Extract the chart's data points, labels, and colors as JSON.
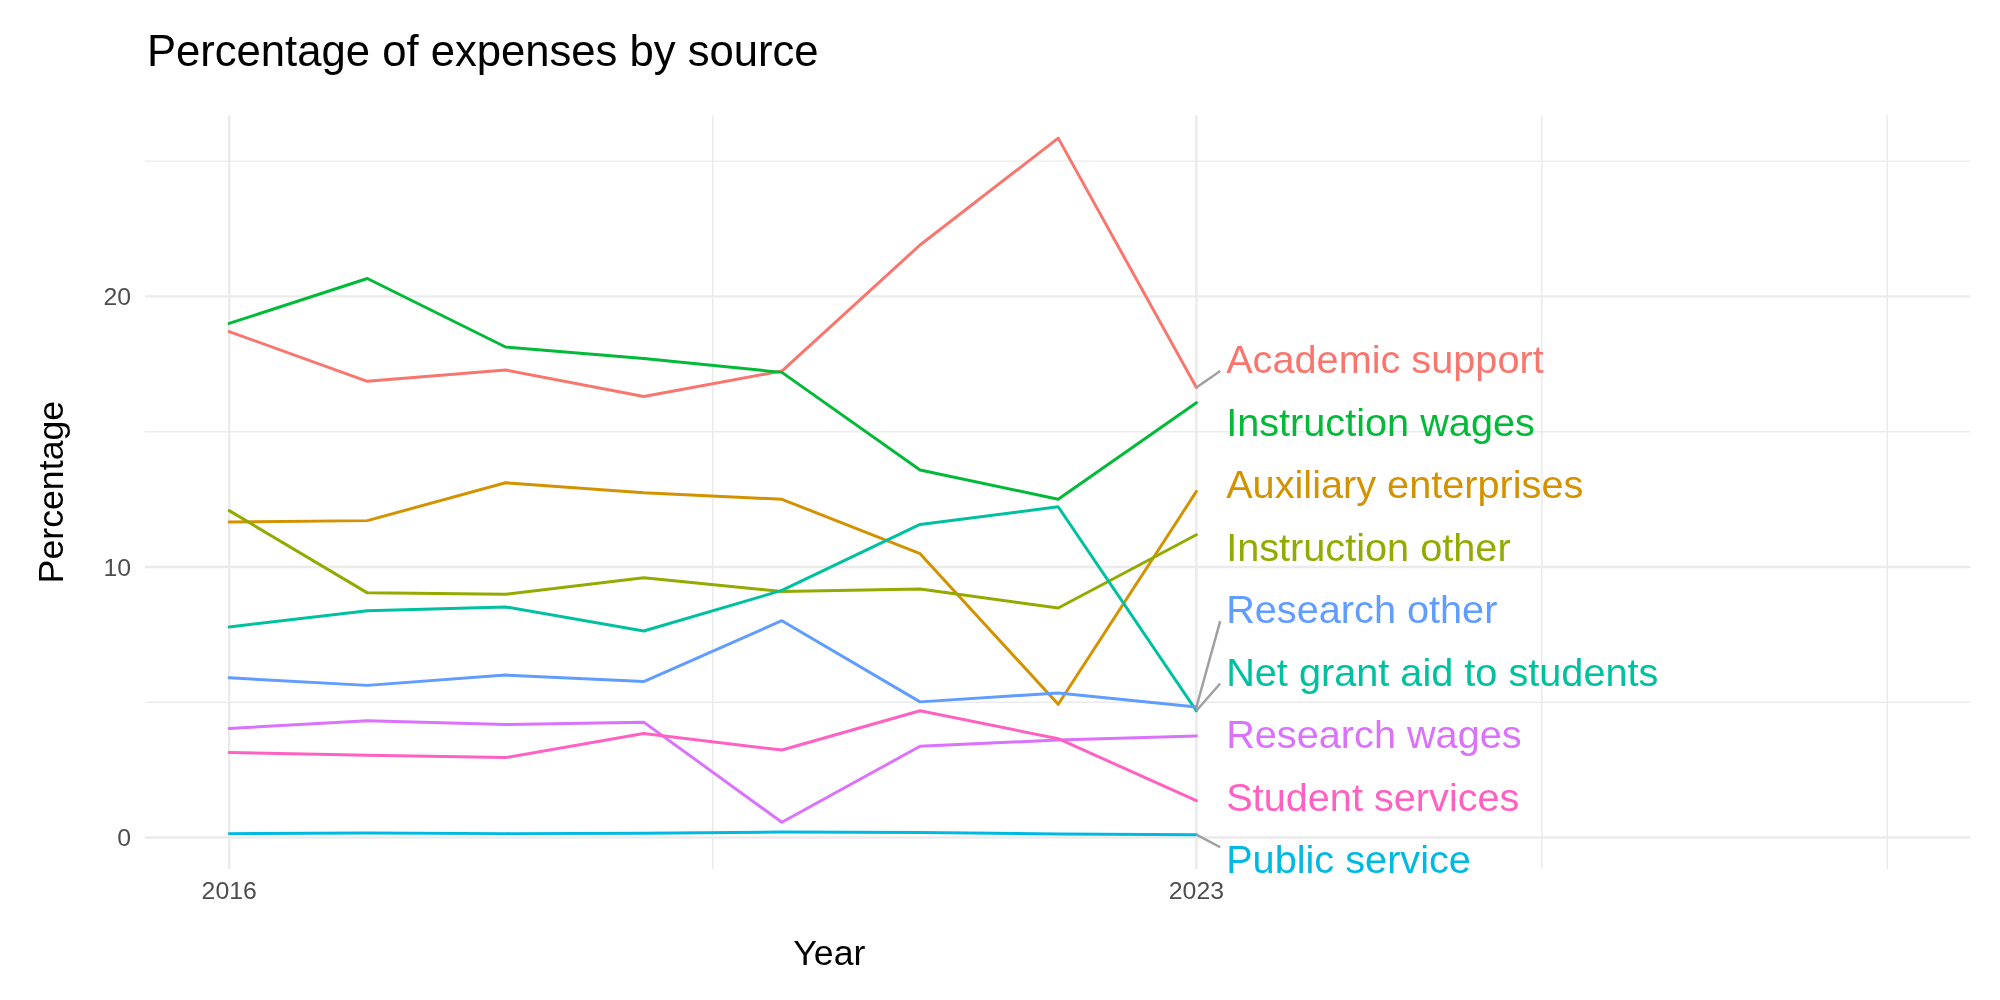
{
  "chart_data": {
    "type": "line",
    "title": "Percentage of expenses by source",
    "xlabel": "Year",
    "ylabel": "Percentage",
    "x": [
      2016,
      2017,
      2018,
      2019,
      2020,
      2021,
      2022,
      2023
    ],
    "xlim": [
      2015.39,
      2028.6
    ],
    "xticks": [
      2016,
      {
        "value": 2019.5,
        "label": null
      },
      2023,
      {
        "value": 2025.5,
        "label": null
      },
      {
        "value": 2028,
        "label": null
      }
    ],
    "ylim": [
      -1.17,
      26.7
    ],
    "yticks": [
      0,
      {
        "value": 5,
        "label": null
      },
      10,
      {
        "value": 15,
        "label": null
      },
      20,
      {
        "value": 25,
        "label": null
      }
    ],
    "grid": true,
    "marker": "none",
    "line_style": "solid",
    "series": [
      {
        "name": "Academic support",
        "color": "#f8766d",
        "values": [
          18.7,
          16.86,
          17.28,
          16.3,
          17.24,
          21.9,
          25.85,
          16.63
        ]
      },
      {
        "name": "Auxiliary enterprises",
        "color": "#d39200",
        "values": [
          11.66,
          11.71,
          13.11,
          12.74,
          12.5,
          10.49,
          4.92,
          12.79
        ]
      },
      {
        "name": "Instruction other",
        "color": "#93aa00",
        "values": [
          12.08,
          9.04,
          8.99,
          9.6,
          9.09,
          9.18,
          8.48,
          11.19
        ]
      },
      {
        "name": "Instruction wages",
        "color": "#00ba38",
        "values": [
          19.0,
          20.66,
          18.13,
          17.7,
          17.19,
          13.58,
          12.5,
          16.07
        ]
      },
      {
        "name": "Net grant aid to students",
        "color": "#00c19f",
        "values": [
          7.78,
          8.38,
          8.52,
          7.63,
          9.13,
          11.57,
          12.22,
          4.68
        ]
      },
      {
        "name": "Public service",
        "color": "#00b9e3",
        "values": [
          0.14,
          0.16,
          0.14,
          0.15,
          0.2,
          0.18,
          0.13,
          0.1
        ]
      },
      {
        "name": "Research other",
        "color": "#619cff",
        "values": [
          5.9,
          5.62,
          6.0,
          5.76,
          8.01,
          5.01,
          5.34,
          4.82
        ]
      },
      {
        "name": "Research wages",
        "color": "#db72fb",
        "values": [
          4.03,
          4.31,
          4.17,
          4.26,
          0.56,
          3.37,
          3.6,
          3.75
        ]
      },
      {
        "name": "Student services",
        "color": "#ff61c3",
        "values": [
          3.14,
          3.04,
          2.95,
          3.84,
          3.23,
          4.68,
          3.65,
          1.36
        ]
      }
    ]
  }
}
